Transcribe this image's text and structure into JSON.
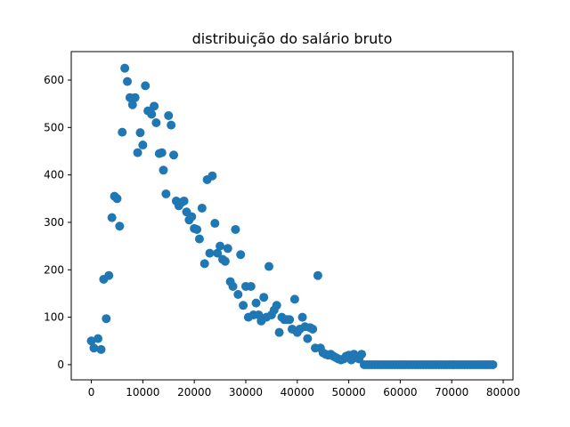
{
  "chart_data": {
    "type": "scatter",
    "title": "distribuição do salário bruto",
    "xlabel": "",
    "ylabel": "",
    "xlim": [
      -3900,
      81900
    ],
    "ylim": [
      -32,
      660
    ],
    "x_ticks": [
      "0",
      "10000",
      "20000",
      "30000",
      "40000",
      "50000",
      "60000",
      "70000",
      "80000"
    ],
    "y_ticks": [
      "0",
      "100",
      "200",
      "300",
      "400",
      "500",
      "600"
    ],
    "marker_color": "#1f77b4",
    "grid": false,
    "points": [
      [
        0,
        50
      ],
      [
        500,
        35
      ],
      [
        1300,
        55
      ],
      [
        1900,
        32
      ],
      [
        2400,
        180
      ],
      [
        2900,
        97
      ],
      [
        3400,
        188
      ],
      [
        4000,
        310
      ],
      [
        4500,
        355
      ],
      [
        5000,
        350
      ],
      [
        5500,
        292
      ],
      [
        6000,
        490
      ],
      [
        6500,
        625
      ],
      [
        7000,
        597
      ],
      [
        7500,
        563
      ],
      [
        8000,
        548
      ],
      [
        8500,
        563
      ],
      [
        9000,
        447
      ],
      [
        9500,
        489
      ],
      [
        10000,
        463
      ],
      [
        10500,
        588
      ],
      [
        11000,
        535
      ],
      [
        11700,
        528
      ],
      [
        12200,
        545
      ],
      [
        12600,
        510
      ],
      [
        13200,
        445
      ],
      [
        13700,
        447
      ],
      [
        14000,
        410
      ],
      [
        14500,
        360
      ],
      [
        15000,
        525
      ],
      [
        15500,
        505
      ],
      [
        16000,
        442
      ],
      [
        16500,
        345
      ],
      [
        17000,
        335
      ],
      [
        17500,
        342
      ],
      [
        18000,
        345
      ],
      [
        18500,
        322
      ],
      [
        19000,
        305
      ],
      [
        19500,
        312
      ],
      [
        20000,
        287
      ],
      [
        20500,
        285
      ],
      [
        21000,
        265
      ],
      [
        21500,
        330
      ],
      [
        22000,
        213
      ],
      [
        22500,
        390
      ],
      [
        23000,
        235
      ],
      [
        23500,
        398
      ],
      [
        24000,
        298
      ],
      [
        24500,
        235
      ],
      [
        25000,
        250
      ],
      [
        25500,
        222
      ],
      [
        26000,
        218
      ],
      [
        26500,
        245
      ],
      [
        27000,
        175
      ],
      [
        27500,
        165
      ],
      [
        28000,
        285
      ],
      [
        28500,
        148
      ],
      [
        29000,
        232
      ],
      [
        29500,
        125
      ],
      [
        30000,
        165
      ],
      [
        30500,
        100
      ],
      [
        31000,
        165
      ],
      [
        31500,
        105
      ],
      [
        32000,
        130
      ],
      [
        32500,
        105
      ],
      [
        33000,
        92
      ],
      [
        33500,
        142
      ],
      [
        34000,
        100
      ],
      [
        34500,
        207
      ],
      [
        35000,
        105
      ],
      [
        35500,
        115
      ],
      [
        36000,
        125
      ],
      [
        36500,
        68
      ],
      [
        37000,
        100
      ],
      [
        37500,
        95
      ],
      [
        38000,
        95
      ],
      [
        38500,
        95
      ],
      [
        39000,
        75
      ],
      [
        39500,
        138
      ],
      [
        40000,
        68
      ],
      [
        40500,
        75
      ],
      [
        41000,
        100
      ],
      [
        41500,
        80
      ],
      [
        42000,
        55
      ],
      [
        42500,
        78
      ],
      [
        43000,
        75
      ],
      [
        43500,
        35
      ],
      [
        44000,
        188
      ],
      [
        44500,
        35
      ],
      [
        45000,
        25
      ],
      [
        45500,
        22
      ],
      [
        46000,
        20
      ],
      [
        46500,
        22
      ],
      [
        47000,
        18
      ],
      [
        47500,
        15
      ],
      [
        48000,
        12
      ],
      [
        48500,
        10
      ],
      [
        49000,
        12
      ],
      [
        49500,
        18
      ],
      [
        50000,
        20
      ],
      [
        50500,
        10
      ],
      [
        51000,
        22
      ],
      [
        51500,
        15
      ],
      [
        52000,
        12
      ],
      [
        52500,
        22
      ],
      [
        53000,
        0
      ],
      [
        53500,
        0
      ],
      [
        54000,
        0
      ],
      [
        54500,
        0
      ],
      [
        55000,
        0
      ],
      [
        55500,
        0
      ],
      [
        56000,
        0
      ],
      [
        56500,
        0
      ],
      [
        57000,
        0
      ],
      [
        57500,
        0
      ],
      [
        58000,
        0
      ],
      [
        58500,
        0
      ],
      [
        59000,
        0
      ],
      [
        59500,
        0
      ],
      [
        60000,
        0
      ],
      [
        60500,
        0
      ],
      [
        61000,
        0
      ],
      [
        61500,
        0
      ],
      [
        62000,
        0
      ],
      [
        62500,
        0
      ],
      [
        63000,
        0
      ],
      [
        63500,
        0
      ],
      [
        64000,
        0
      ],
      [
        64500,
        0
      ],
      [
        65000,
        0
      ],
      [
        65500,
        0
      ],
      [
        66000,
        0
      ],
      [
        66500,
        0
      ],
      [
        67000,
        0
      ],
      [
        67500,
        0
      ],
      [
        68000,
        0
      ],
      [
        68500,
        0
      ],
      [
        69000,
        0
      ],
      [
        69500,
        0
      ],
      [
        70000,
        0
      ],
      [
        70500,
        0
      ],
      [
        71000,
        0
      ],
      [
        71500,
        0
      ],
      [
        72000,
        0
      ],
      [
        72500,
        0
      ],
      [
        73000,
        0
      ],
      [
        73500,
        0
      ],
      [
        74000,
        0
      ],
      [
        74500,
        0
      ],
      [
        75000,
        0
      ],
      [
        75500,
        0
      ],
      [
        76000,
        0
      ],
      [
        76500,
        0
      ],
      [
        77000,
        0
      ],
      [
        77500,
        0
      ],
      [
        78000,
        0
      ]
    ]
  }
}
